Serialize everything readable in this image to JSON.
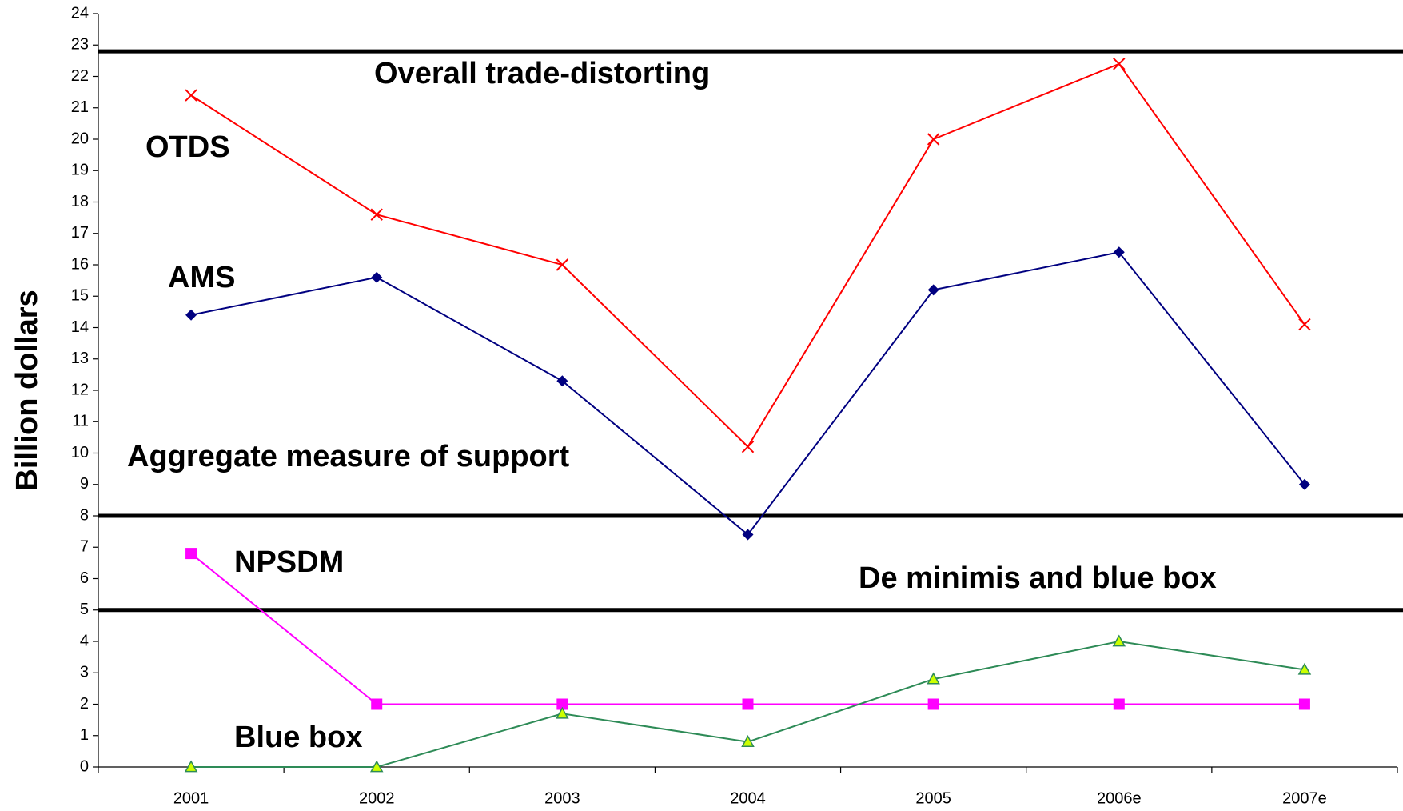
{
  "chart_data": {
    "type": "line",
    "y_label": "Billion dollars",
    "categories": [
      "2001",
      "2002",
      "2003",
      "2004",
      "2005",
      "2006e",
      "2007e"
    ],
    "series": [
      {
        "name": "OTDS",
        "color": "#ff0000",
        "marker": "x",
        "values": [
          21.4,
          17.6,
          16.0,
          10.2,
          20.0,
          22.4,
          14.1
        ]
      },
      {
        "name": "AMS",
        "color": "#000080",
        "marker": "diamond",
        "values": [
          14.4,
          15.6,
          12.3,
          7.4,
          15.2,
          16.4,
          9.0
        ]
      },
      {
        "name": "NPSDM",
        "color": "#ff00ff",
        "marker": "square",
        "values": [
          6.8,
          2,
          2,
          2,
          2,
          2,
          2
        ]
      },
      {
        "name": "Blue box",
        "color": "#2e8b57",
        "marker": "triangle",
        "values": [
          0,
          0,
          1.7,
          0.8,
          2.8,
          4.0,
          3.1
        ]
      }
    ],
    "reference_lines": [
      22.8,
      8,
      5
    ],
    "annotations": [
      "Overall trade-distorting",
      "Aggregate measure of support",
      "De minimis and blue box"
    ],
    "ylim": [
      0,
      24
    ],
    "yticks": [
      0,
      1,
      2,
      3,
      4,
      5,
      6,
      7,
      8,
      9,
      10,
      11,
      12,
      13,
      14,
      15,
      16,
      17,
      18,
      19,
      20,
      21,
      22,
      23,
      24
    ],
    "grid": false
  }
}
